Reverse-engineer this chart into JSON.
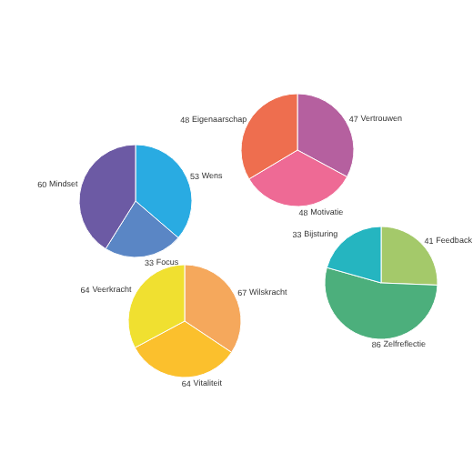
{
  "chart_data": [
    {
      "type": "pie",
      "categories": [
        "Wens",
        "Focus",
        "Mindset"
      ],
      "values": [
        53,
        33,
        60
      ],
      "colors": [
        "#29abe2",
        "#5a86c5",
        "#6c5aa4"
      ],
      "data_labels": true
    },
    {
      "type": "pie",
      "categories": [
        "Vertrouwen",
        "Motivatie",
        "Eigenaarschap"
      ],
      "values": [
        47,
        48,
        48
      ],
      "colors": [
        "#b5609f",
        "#ee6a95",
        "#ee6e4f"
      ],
      "data_labels": true
    },
    {
      "type": "pie",
      "categories": [
        "Wilskracht",
        "Vitaliteit",
        "Veerkracht"
      ],
      "values": [
        67,
        64,
        64
      ],
      "colors": [
        "#f5a85c",
        "#fbc02d",
        "#f0e030"
      ],
      "data_labels": true
    },
    {
      "type": "pie",
      "categories": [
        "Feedback",
        "Zelfreflectie",
        "Bijsturing"
      ],
      "values": [
        41,
        86,
        33
      ],
      "colors": [
        "#a4c96a",
        "#4caf7c",
        "#25b5c0"
      ],
      "data_labels": true
    }
  ]
}
